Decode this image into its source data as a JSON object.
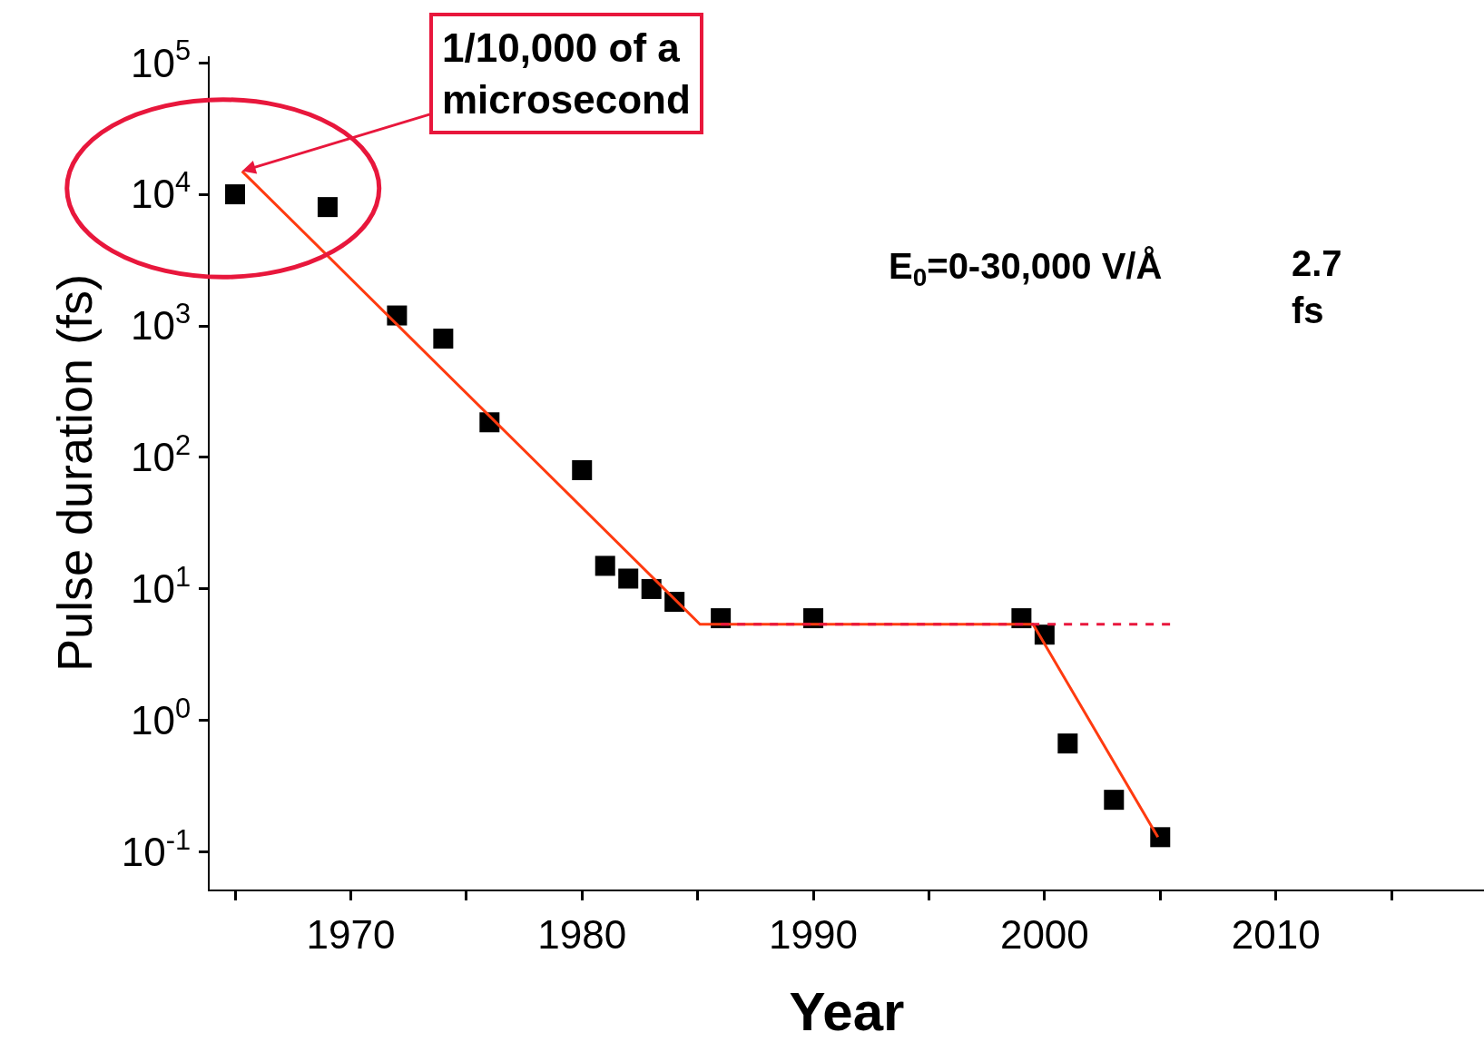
{
  "chart_data": {
    "type": "scatter",
    "xlabel": "Year",
    "ylabel": "Pulse duration (fs)",
    "log": "y",
    "xlim": [
      1963.9,
      2019
    ],
    "ylim": [
      0.052,
      112000
    ],
    "xticks": [
      {
        "value": 1965,
        "label": null
      },
      1970,
      {
        "value": 1975,
        "label": null
      },
      1980,
      {
        "value": 1985,
        "label": null
      },
      1990,
      {
        "value": 1995,
        "label": null
      },
      2000,
      {
        "value": 2005,
        "label": null
      },
      2010,
      {
        "value": 2015,
        "label": null
      }
    ],
    "yticks": [
      {
        "value": 0.1,
        "label": "10$^{-1}$"
      },
      {
        "value": 1,
        "label": "10$^{0}$"
      },
      {
        "value": 10,
        "label": "10$^{1}$"
      },
      {
        "value": 100,
        "label": "10$^{2}$"
      },
      {
        "value": 1000,
        "label": "10$^{3}$"
      },
      {
        "value": 10000,
        "label": "10$^{4}$"
      },
      {
        "value": 100000,
        "label": "10$^{5}$"
      }
    ],
    "series": [
      {
        "marker": "square",
        "color": "#000000",
        "x": [
          1965,
          1969,
          1972,
          1974,
          1976,
          1980,
          1981,
          1982,
          1983,
          1984,
          1986,
          1990,
          1999,
          2000,
          2001,
          2003,
          2005
        ],
        "values": [
          10000,
          8000,
          1200,
          800,
          185,
          80,
          15,
          12,
          10,
          8,
          6,
          6,
          6,
          4.5,
          0.67,
          0.25,
          0.13
        ]
      },
      {
        "type": "line",
        "marker": "none",
        "line_style": "solid",
        "color": "#ff3b10",
        "x": [
          1965.3,
          1985.1,
          1999.5,
          2004.9
        ],
        "values": [
          15000,
          5.4,
          5.4,
          0.13
        ]
      },
      {
        "type": "line",
        "marker": "none",
        "line_style": "dashed",
        "color": "#e8173c",
        "x": [
          1986,
          2005.6
        ],
        "values": [
          5.4,
          5.4
        ]
      }
    ],
    "annotations": [
      {
        "text": "1/10,000 of a\nmicrosecond",
        "x": 1965.3,
        "y": 15000
      },
      "E$_{0}$=0-30,000 V/Å",
      "2.7\nfs"
    ]
  }
}
